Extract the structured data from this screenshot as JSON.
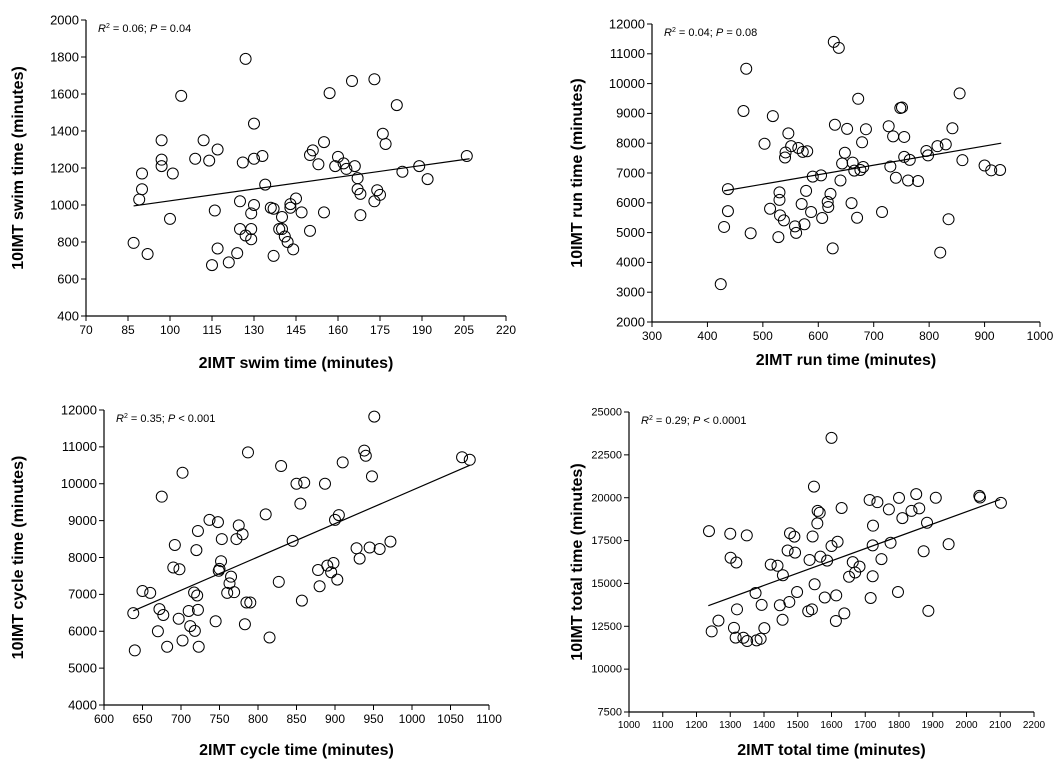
{
  "chart_data": [
    {
      "type": "scatter",
      "annotation": {
        "r2_label": "R",
        "r2_exp": "2",
        "r2_value": " = 0.06; ",
        "p_label": "P",
        "p_value": " = 0.04"
      },
      "xlabel": "2IMT swim time (minutes)",
      "ylabel": "10IMT swim time (minutes)",
      "xlim": [
        70,
        220
      ],
      "ylim": [
        400,
        2000
      ],
      "xticks": [
        "70",
        "85",
        "100",
        "115",
        "130",
        "145",
        "160",
        "175",
        "190",
        "205",
        "220"
      ],
      "yticks": [
        "400",
        "600",
        "800",
        "1000",
        "1200",
        "1400",
        "1600",
        "1800",
        "2000"
      ],
      "trendline": [
        [
          87,
          995
        ],
        [
          207,
          1250
        ]
      ],
      "points": [
        [
          87,
          795
        ],
        [
          89,
          1030
        ],
        [
          90,
          1170
        ],
        [
          90,
          1085
        ],
        [
          92,
          735
        ],
        [
          97,
          1350
        ],
        [
          97,
          1245
        ],
        [
          97,
          1210
        ],
        [
          100,
          925
        ],
        [
          101,
          1170
        ],
        [
          104,
          1590
        ],
        [
          109,
          1250
        ],
        [
          112,
          1350
        ],
        [
          114,
          1240
        ],
        [
          115,
          675
        ],
        [
          116,
          970
        ],
        [
          117,
          1300
        ],
        [
          117,
          765
        ],
        [
          121,
          690
        ],
        [
          124,
          740
        ],
        [
          125,
          1020
        ],
        [
          125,
          870
        ],
        [
          126,
          1230
        ],
        [
          127,
          835
        ],
        [
          127,
          1790
        ],
        [
          129,
          955
        ],
        [
          129,
          815
        ],
        [
          129,
          870
        ],
        [
          130,
          1250
        ],
        [
          130,
          1440
        ],
        [
          130,
          1000
        ],
        [
          133,
          1265
        ],
        [
          134,
          1110
        ],
        [
          136,
          985
        ],
        [
          137,
          980
        ],
        [
          137,
          725
        ],
        [
          139,
          870
        ],
        [
          140,
          870
        ],
        [
          140,
          935
        ],
        [
          141,
          830
        ],
        [
          142,
          800
        ],
        [
          143,
          985
        ],
        [
          143,
          1005
        ],
        [
          144,
          760
        ],
        [
          145,
          1035
        ],
        [
          147,
          960
        ],
        [
          150,
          860
        ],
        [
          150,
          1270
        ],
        [
          151,
          1295
        ],
        [
          153,
          1220
        ],
        [
          155,
          1340
        ],
        [
          155,
          960
        ],
        [
          157,
          1605
        ],
        [
          159,
          1210
        ],
        [
          160,
          1260
        ],
        [
          162,
          1225
        ],
        [
          163,
          1195
        ],
        [
          165,
          1670
        ],
        [
          166,
          1210
        ],
        [
          167,
          1145
        ],
        [
          167,
          1085
        ],
        [
          168,
          945
        ],
        [
          168,
          1060
        ],
        [
          173,
          1680
        ],
        [
          173,
          1020
        ],
        [
          174,
          1080
        ],
        [
          175,
          1055
        ],
        [
          176,
          1385
        ],
        [
          177,
          1330
        ],
        [
          181,
          1540
        ],
        [
          183,
          1180
        ],
        [
          189,
          1210
        ],
        [
          192,
          1140
        ],
        [
          206,
          1265
        ]
      ]
    },
    {
      "type": "scatter",
      "annotation": {
        "r2_label": "R",
        "r2_exp": "2",
        "r2_value": " = 0.04; ",
        "p_label": "P",
        "p_value": " = 0.08"
      },
      "xlabel": "2IMT run time (minutes)",
      "ylabel": "10IMT run time (minutes)",
      "xlim": [
        300,
        1000
      ],
      "ylim": [
        2000,
        12000
      ],
      "xticks": [
        "300",
        "400",
        "500",
        "600",
        "700",
        "800",
        "900",
        "1000"
      ],
      "yticks": [
        "2000",
        "3000",
        "4000",
        "5000",
        "6000",
        "7000",
        "8000",
        "9000",
        "10000",
        "11000",
        "12000"
      ],
      "trendline": [
        [
          430,
          6400
        ],
        [
          930,
          8000
        ]
      ],
      "points": [
        [
          424,
          3270
        ],
        [
          430,
          5190
        ],
        [
          437,
          6460
        ],
        [
          437,
          5720
        ],
        [
          465,
          9080
        ],
        [
          470,
          10500
        ],
        [
          478,
          4980
        ],
        [
          503,
          7980
        ],
        [
          513,
          5800
        ],
        [
          518,
          8910
        ],
        [
          528,
          4850
        ],
        [
          530,
          6350
        ],
        [
          530,
          6100
        ],
        [
          531,
          5580
        ],
        [
          538,
          5410
        ],
        [
          540,
          7520
        ],
        [
          541,
          7690
        ],
        [
          546,
          8330
        ],
        [
          551,
          7900
        ],
        [
          558,
          5210
        ],
        [
          560,
          4990
        ],
        [
          564,
          7840
        ],
        [
          570,
          5960
        ],
        [
          572,
          7710
        ],
        [
          575,
          5280
        ],
        [
          578,
          6400
        ],
        [
          580,
          7730
        ],
        [
          587,
          5690
        ],
        [
          590,
          6880
        ],
        [
          605,
          6920
        ],
        [
          607,
          5490
        ],
        [
          617,
          6030
        ],
        [
          618,
          5860
        ],
        [
          622,
          6300
        ],
        [
          626,
          4470
        ],
        [
          628,
          11400
        ],
        [
          630,
          8620
        ],
        [
          637,
          11200
        ],
        [
          640,
          6750
        ],
        [
          643,
          7320
        ],
        [
          648,
          7680
        ],
        [
          652,
          8480
        ],
        [
          660,
          5990
        ],
        [
          662,
          7350
        ],
        [
          665,
          7080
        ],
        [
          670,
          5500
        ],
        [
          672,
          9490
        ],
        [
          676,
          7100
        ],
        [
          679,
          8030
        ],
        [
          681,
          7200
        ],
        [
          686,
          8470
        ],
        [
          715,
          5690
        ],
        [
          727,
          8570
        ],
        [
          730,
          7220
        ],
        [
          735,
          8230
        ],
        [
          740,
          6840
        ],
        [
          748,
          9180
        ],
        [
          751,
          9200
        ],
        [
          755,
          8210
        ],
        [
          755,
          7540
        ],
        [
          762,
          6750
        ],
        [
          765,
          7440
        ],
        [
          780,
          6730
        ],
        [
          795,
          7740
        ],
        [
          798,
          7590
        ],
        [
          815,
          7900
        ],
        [
          820,
          4330
        ],
        [
          830,
          7960
        ],
        [
          835,
          5450
        ],
        [
          842,
          8500
        ],
        [
          855,
          9670
        ],
        [
          860,
          7430
        ],
        [
          900,
          7250
        ],
        [
          912,
          7090
        ],
        [
          928,
          7100
        ]
      ]
    },
    {
      "type": "scatter",
      "annotation": {
        "r2_label": "R",
        "r2_exp": "2",
        "r2_value": " = 0.35; ",
        "p_label": "P",
        "p_value": " < 0.001"
      },
      "xlabel": "2IMT cycle time (minutes)",
      "ylabel": "10IMT cycle time (minutes)",
      "xlim": [
        600,
        1100
      ],
      "ylim": [
        4000,
        12000
      ],
      "xticks": [
        "600",
        "650",
        "700",
        "750",
        "800",
        "850",
        "900",
        "950",
        "1000",
        "1050",
        "1100"
      ],
      "yticks": [
        "4000",
        "5000",
        "6000",
        "7000",
        "8000",
        "9000",
        "10000",
        "11000",
        "12000"
      ],
      "trendline": [
        [
          638,
          6550
        ],
        [
          1075,
          10500
        ]
      ],
      "points": [
        [
          638,
          6490
        ],
        [
          640,
          5480
        ],
        [
          650,
          7090
        ],
        [
          660,
          7040
        ],
        [
          670,
          6000
        ],
        [
          672,
          6600
        ],
        [
          675,
          9650
        ],
        [
          677,
          6440
        ],
        [
          682,
          5580
        ],
        [
          690,
          7730
        ],
        [
          692,
          8340
        ],
        [
          697,
          6340
        ],
        [
          698,
          7680
        ],
        [
          702,
          5750
        ],
        [
          702,
          10300
        ],
        [
          710,
          6550
        ],
        [
          712,
          6140
        ],
        [
          717,
          7050
        ],
        [
          718,
          6010
        ],
        [
          720,
          8200
        ],
        [
          721,
          6970
        ],
        [
          722,
          6580
        ],
        [
          722,
          8720
        ],
        [
          723,
          5580
        ],
        [
          737,
          9020
        ],
        [
          745,
          6270
        ],
        [
          748,
          8960
        ],
        [
          749,
          7640
        ],
        [
          750,
          7690
        ],
        [
          752,
          7900
        ],
        [
          753,
          8500
        ],
        [
          760,
          7040
        ],
        [
          763,
          7300
        ],
        [
          765,
          7480
        ],
        [
          769,
          7060
        ],
        [
          772,
          8500
        ],
        [
          775,
          8870
        ],
        [
          780,
          8630
        ],
        [
          783,
          6190
        ],
        [
          785,
          6780
        ],
        [
          787,
          10850
        ],
        [
          790,
          6780
        ],
        [
          810,
          9170
        ],
        [
          815,
          5830
        ],
        [
          827,
          7340
        ],
        [
          830,
          10480
        ],
        [
          845,
          8450
        ],
        [
          850,
          10000
        ],
        [
          855,
          9460
        ],
        [
          857,
          6830
        ],
        [
          860,
          10030
        ],
        [
          878,
          7660
        ],
        [
          880,
          7220
        ],
        [
          887,
          10000
        ],
        [
          890,
          7780
        ],
        [
          895,
          7600
        ],
        [
          898,
          7850
        ],
        [
          900,
          9020
        ],
        [
          903,
          7400
        ],
        [
          905,
          9150
        ],
        [
          910,
          10580
        ],
        [
          928,
          8250
        ],
        [
          932,
          7970
        ],
        [
          938,
          10900
        ],
        [
          940,
          10760
        ],
        [
          945,
          8270
        ],
        [
          948,
          10200
        ],
        [
          951,
          11820
        ],
        [
          958,
          8230
        ],
        [
          972,
          8430
        ],
        [
          1065,
          10720
        ],
        [
          1075,
          10650
        ]
      ]
    },
    {
      "type": "scatter",
      "annotation": {
        "r2_label": "R",
        "r2_exp": "2",
        "r2_value": " = 0.29; ",
        "p_label": "P",
        "p_value": " < 0.0001"
      },
      "xlabel": "2IMT total time (minutes)",
      "ylabel": "10IMT total time (minutes)",
      "xlim": [
        1000,
        2200
      ],
      "ylim": [
        7500,
        25000
      ],
      "xticks": [
        "1000",
        "1100",
        "1200",
        "1300",
        "1400",
        "1500",
        "1600",
        "1700",
        "1800",
        "1900",
        "2000",
        "2100",
        "2200"
      ],
      "yticks": [
        "7500",
        "10000",
        "12500",
        "15000",
        "17500",
        "20000",
        "22500",
        "25000"
      ],
      "trendline": [
        [
          1235,
          13700
        ],
        [
          2100,
          19900
        ]
      ],
      "points": [
        [
          1237,
          18050
        ],
        [
          1245,
          12200
        ],
        [
          1265,
          12830
        ],
        [
          1300,
          17900
        ],
        [
          1301,
          16500
        ],
        [
          1311,
          12410
        ],
        [
          1316,
          11840
        ],
        [
          1318,
          16220
        ],
        [
          1320,
          13490
        ],
        [
          1339,
          11830
        ],
        [
          1349,
          17800
        ],
        [
          1350,
          11640
        ],
        [
          1375,
          14440
        ],
        [
          1378,
          11680
        ],
        [
          1390,
          11770
        ],
        [
          1393,
          13750
        ],
        [
          1401,
          12390
        ],
        [
          1420,
          16100
        ],
        [
          1440,
          16030
        ],
        [
          1447,
          13730
        ],
        [
          1455,
          12880
        ],
        [
          1456,
          15480
        ],
        [
          1470,
          16920
        ],
        [
          1475,
          13920
        ],
        [
          1477,
          17930
        ],
        [
          1490,
          17730
        ],
        [
          1492,
          16800
        ],
        [
          1498,
          14500
        ],
        [
          1531,
          13380
        ],
        [
          1535,
          16370
        ],
        [
          1542,
          13490
        ],
        [
          1544,
          17740
        ],
        [
          1548,
          20650
        ],
        [
          1550,
          14950
        ],
        [
          1558,
          18500
        ],
        [
          1559,
          19230
        ],
        [
          1565,
          19120
        ],
        [
          1567,
          16560
        ],
        [
          1580,
          14180
        ],
        [
          1587,
          16330
        ],
        [
          1600,
          17180
        ],
        [
          1600,
          23490
        ],
        [
          1613,
          12810
        ],
        [
          1614,
          14300
        ],
        [
          1618,
          17430
        ],
        [
          1630,
          19400
        ],
        [
          1638,
          13250
        ],
        [
          1652,
          15390
        ],
        [
          1663,
          16240
        ],
        [
          1670,
          15640
        ],
        [
          1683,
          15980
        ],
        [
          1713,
          19870
        ],
        [
          1716,
          14150
        ],
        [
          1722,
          17220
        ],
        [
          1722,
          15420
        ],
        [
          1723,
          18370
        ],
        [
          1736,
          19740
        ],
        [
          1748,
          16420
        ],
        [
          1770,
          19320
        ],
        [
          1775,
          17370
        ],
        [
          1797,
          14500
        ],
        [
          1800,
          19990
        ],
        [
          1810,
          18810
        ],
        [
          1837,
          19230
        ],
        [
          1851,
          20210
        ],
        [
          1860,
          19380
        ],
        [
          1873,
          16880
        ],
        [
          1883,
          18540
        ],
        [
          1887,
          13400
        ],
        [
          1909,
          20000
        ],
        [
          1947,
          17290
        ],
        [
          2038,
          20110
        ],
        [
          2040,
          20010
        ],
        [
          2102,
          19700
        ]
      ]
    }
  ]
}
